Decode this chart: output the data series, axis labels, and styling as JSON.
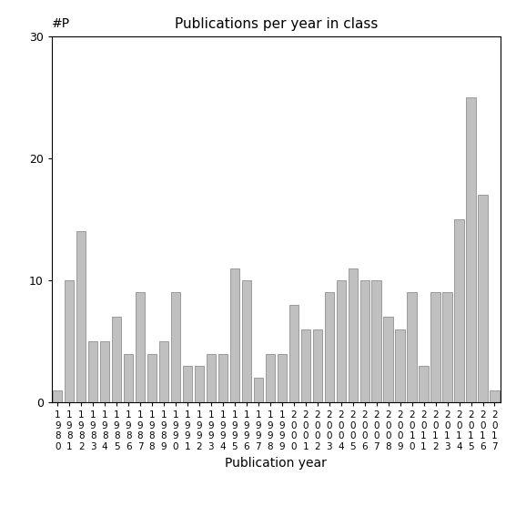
{
  "title": "Publications per year in class",
  "xlabel": "Publication year",
  "ylabel": "#P",
  "years": [
    1980,
    1981,
    1982,
    1983,
    1984,
    1985,
    1986,
    1987,
    1988,
    1989,
    1990,
    1991,
    1992,
    1993,
    1994,
    1995,
    1996,
    1997,
    1998,
    1999,
    2000,
    2001,
    2002,
    2003,
    2004,
    2005,
    2006,
    2007,
    2008,
    2009,
    2010,
    2011,
    2012,
    2013,
    2014,
    2015,
    2016,
    2017
  ],
  "values": [
    1,
    10,
    14,
    5,
    5,
    7,
    4,
    9,
    4,
    5,
    9,
    3,
    3,
    4,
    4,
    11,
    10,
    2,
    4,
    4,
    8,
    6,
    6,
    9,
    10,
    11,
    10,
    10,
    7,
    6,
    9,
    3,
    9,
    9,
    15,
    25,
    17,
    1
  ],
  "bar_color": "#c0c0c0",
  "bar_edgecolor": "#808080",
  "ylim": [
    0,
    30
  ],
  "yticks": [
    0,
    10,
    20,
    30
  ],
  "background_color": "#ffffff",
  "figsize": [
    5.67,
    5.67
  ],
  "dpi": 100
}
